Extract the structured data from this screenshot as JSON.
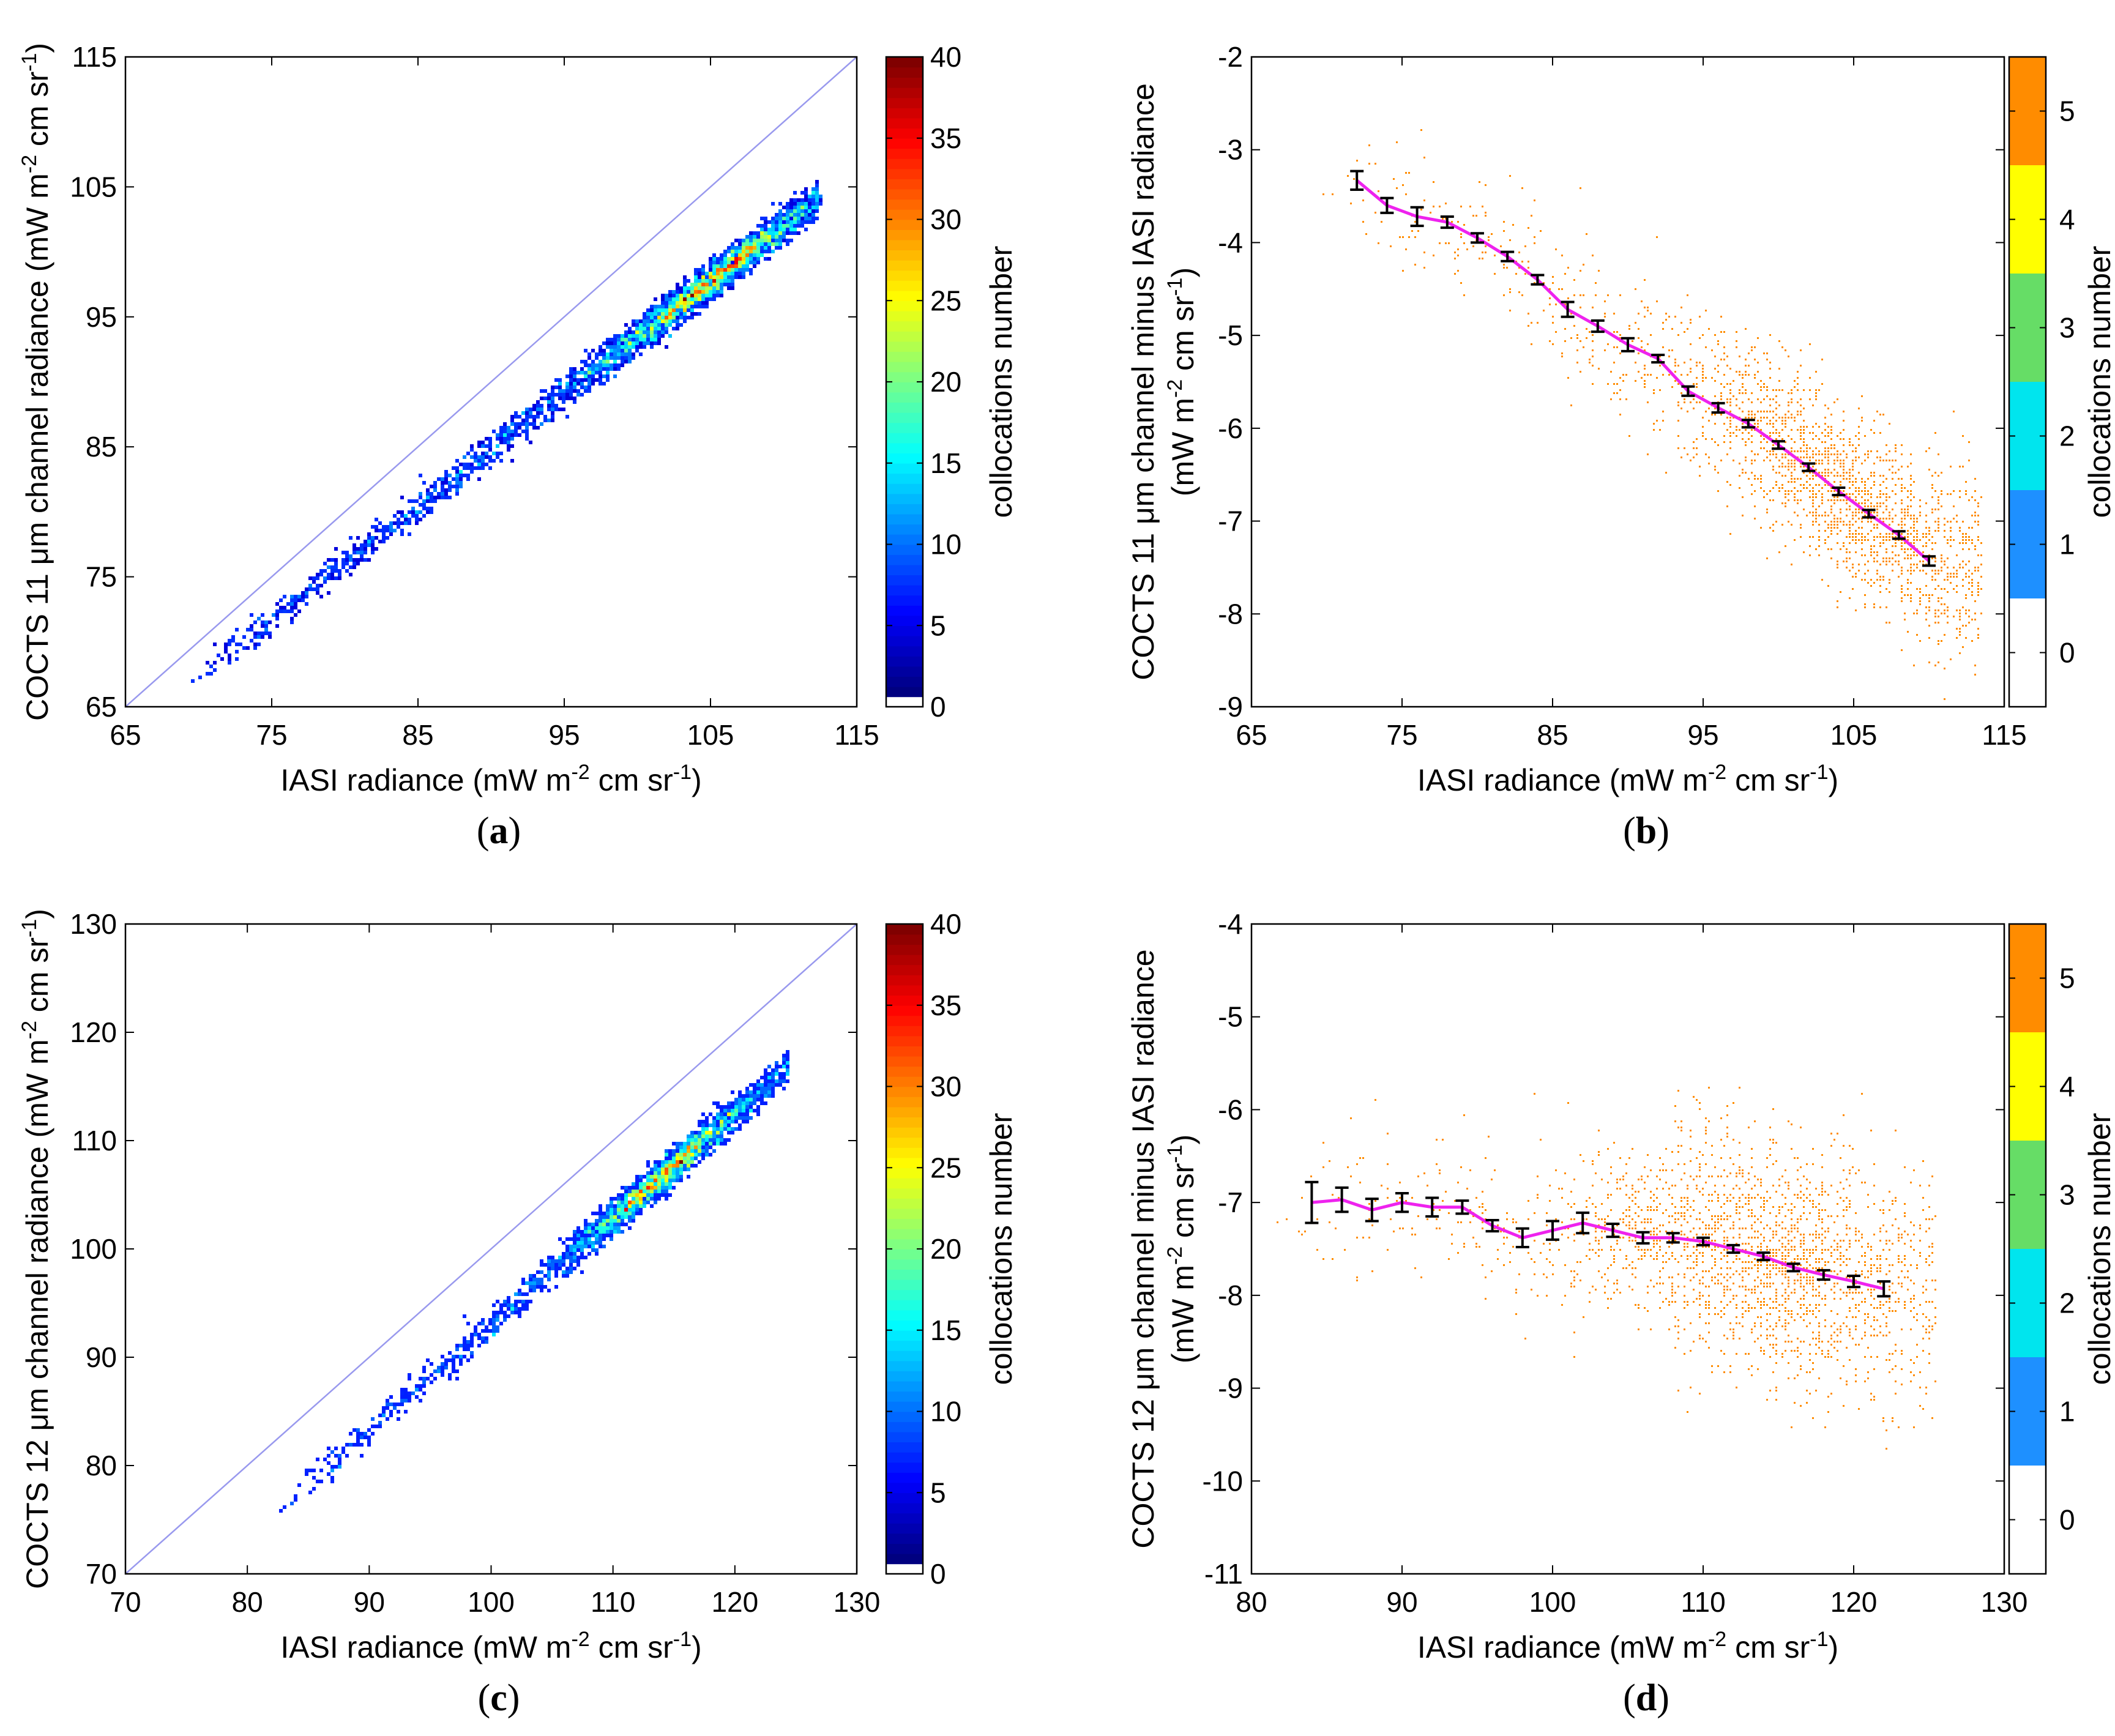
{
  "figure": {
    "panels": [
      {
        "id": "a",
        "label_open": "(",
        "label_letter": "a",
        "label_close": ")"
      },
      {
        "id": "b",
        "label_open": "(",
        "label_letter": "b",
        "label_close": ")"
      },
      {
        "id": "c",
        "label_open": "(",
        "label_letter": "c",
        "label_close": ")"
      },
      {
        "id": "d",
        "label_open": "(",
        "label_letter": "d",
        "label_close": ")"
      }
    ]
  },
  "chart_data": [
    {
      "id": "a",
      "type": "scatter",
      "subtype": "density-heatmap",
      "xlabel": "IASI radiance (mW m^-2 cm sr^-1)",
      "ylabel": "COCTS 11 μm channel radiance (mW m^-2 cm sr^-1)",
      "xlim": [
        65,
        115
      ],
      "ylim": [
        65,
        115
      ],
      "xticks": [
        65,
        75,
        85,
        95,
        105,
        115
      ],
      "yticks": [
        65,
        75,
        85,
        95,
        105,
        115
      ],
      "reference_line": {
        "label": "1:1 line",
        "x": [
          65,
          115
        ],
        "y": [
          65,
          115
        ],
        "color": "#9999ee"
      },
      "distribution": {
        "x_range": [
          69.5,
          112.5
        ],
        "fit_slope": 0.865,
        "fit_intercept": 6.88,
        "spread": 0.65,
        "peak_x": 105
      },
      "colorbar": {
        "label": "collocations number",
        "min": 0,
        "max": 40,
        "ticks": [
          0,
          5,
          10,
          15,
          20,
          25,
          30,
          35,
          40
        ],
        "colormap": "jet"
      }
    },
    {
      "id": "b",
      "type": "scatter",
      "subtype": "density-heatmap-with-binned-mean",
      "xlabel": "IASI radiance (mW m^-2 cm sr^-1)",
      "ylabel_line1": "COCTS 11 μm channel minus IASI radiance",
      "ylabel_line2": "(mW m^-2 cm sr^-1)",
      "xlim": [
        65,
        115
      ],
      "ylim": [
        -9,
        -2
      ],
      "xticks": [
        65,
        75,
        85,
        95,
        105,
        115
      ],
      "yticks": [
        -9,
        -8,
        -7,
        -6,
        -5,
        -4,
        -3,
        -2
      ],
      "series": [
        {
          "name": "binned mean ± std error",
          "color": "#ee22ee",
          "x": [
            72,
            74,
            76,
            78,
            80,
            82,
            84,
            86,
            88,
            90,
            92,
            94,
            96,
            98,
            100,
            102,
            104,
            106,
            108,
            110
          ],
          "y": [
            -3.33,
            -3.6,
            -3.72,
            -3.78,
            -3.95,
            -4.15,
            -4.4,
            -4.72,
            -4.9,
            -5.1,
            -5.25,
            -5.6,
            -5.78,
            -5.95,
            -6.18,
            -6.42,
            -6.68,
            -6.92,
            -7.15,
            -7.43
          ],
          "err": [
            0.1,
            0.08,
            0.1,
            0.06,
            0.05,
            0.05,
            0.05,
            0.08,
            0.06,
            0.07,
            0.04,
            0.05,
            0.05,
            0.04,
            0.04,
            0.04,
            0.04,
            0.04,
            0.04,
            0.05
          ]
        }
      ],
      "colorbar": {
        "label": "collocations number",
        "min": 0,
        "max": 5,
        "ticks": [
          0,
          1,
          2,
          3,
          4,
          5
        ],
        "colors": [
          "#ffffff",
          "#1e90ff",
          "#00e5ee",
          "#66dd66",
          "#ffff00",
          "#ff8c00"
        ]
      }
    },
    {
      "id": "c",
      "type": "scatter",
      "subtype": "density-heatmap",
      "xlabel": "IASI radiance (mW m^-2 cm sr^-1)",
      "ylabel": "COCTS 12 μm channel radiance (mW m^-2 cm sr^-1)",
      "xlim": [
        70,
        130
      ],
      "ylim": [
        70,
        130
      ],
      "xticks": [
        70,
        80,
        90,
        100,
        110,
        120,
        130
      ],
      "yticks": [
        70,
        80,
        90,
        100,
        110,
        120,
        130
      ],
      "reference_line": {
        "label": "1:1 line",
        "x": [
          70,
          130
        ],
        "y": [
          70,
          130
        ],
        "color": "#9999ee"
      },
      "distribution": {
        "x_range": [
          82.5,
          124.5
        ],
        "fit_slope": 0.975,
        "fit_intercept": -4.5,
        "spread": 0.8,
        "peak_x": 114
      },
      "colorbar": {
        "label": "collocations number",
        "min": 0,
        "max": 40,
        "ticks": [
          0,
          5,
          10,
          15,
          20,
          25,
          30,
          35,
          40
        ],
        "colormap": "jet"
      }
    },
    {
      "id": "d",
      "type": "scatter",
      "subtype": "density-heatmap-with-binned-mean",
      "xlabel": "IASI radiance (mW m^-2 cm sr^-1)",
      "ylabel_line1": "COCTS 12 μm channel minus IASI radiance",
      "ylabel_line2": "(mW m^-2 cm sr^-1)",
      "xlim": [
        80,
        130
      ],
      "ylim": [
        -11,
        -4
      ],
      "xticks": [
        80,
        90,
        100,
        110,
        120,
        130
      ],
      "yticks": [
        -11,
        -10,
        -9,
        -8,
        -7,
        -6,
        -5,
        -4
      ],
      "series": [
        {
          "name": "binned mean ± std error",
          "color": "#ee22ee",
          "x": [
            84,
            86,
            88,
            90,
            92,
            94,
            96,
            98,
            100,
            102,
            104,
            106,
            108,
            110,
            112,
            114,
            116,
            118,
            120,
            122
          ],
          "y": [
            -7.0,
            -6.97,
            -7.08,
            -7.0,
            -7.05,
            -7.05,
            -7.25,
            -7.38,
            -7.3,
            -7.22,
            -7.3,
            -7.38,
            -7.38,
            -7.42,
            -7.5,
            -7.58,
            -7.7,
            -7.78,
            -7.85,
            -7.93
          ],
          "err": [
            0.22,
            0.13,
            0.12,
            0.1,
            0.1,
            0.07,
            0.06,
            0.1,
            0.1,
            0.11,
            0.07,
            0.06,
            0.05,
            0.04,
            0.04,
            0.04,
            0.04,
            0.05,
            0.06,
            0.08
          ]
        }
      ],
      "colorbar": {
        "label": "collocations number",
        "min": 0,
        "max": 5,
        "ticks": [
          0,
          1,
          2,
          3,
          4,
          5
        ],
        "colors": [
          "#ffffff",
          "#1e90ff",
          "#00e5ee",
          "#66dd66",
          "#ffff00",
          "#ff8c00"
        ]
      }
    }
  ]
}
